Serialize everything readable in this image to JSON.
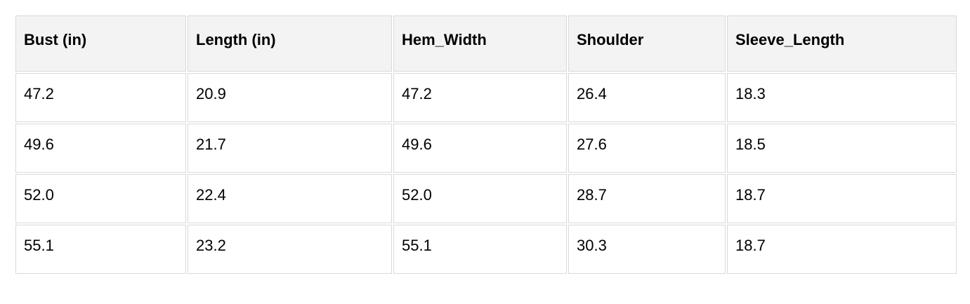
{
  "chart_data": {
    "type": "table",
    "title": "",
    "columns": [
      "Bust (in)",
      "Length (in)",
      "Hem_Width",
      "Shoulder",
      "Sleeve_Length"
    ],
    "rows": [
      [
        "47.2",
        "20.9",
        "47.2",
        "26.4",
        "18.3"
      ],
      [
        "49.6",
        "21.7",
        "49.6",
        "27.6",
        "18.5"
      ],
      [
        "52.0",
        "22.4",
        "52.0",
        "28.7",
        "18.7"
      ],
      [
        "55.1",
        "23.2",
        "55.1",
        "30.3",
        "18.7"
      ]
    ]
  },
  "colors": {
    "header_background": "#f3f3f3",
    "cell_background": "#ffffff",
    "border": "#d9d9d9",
    "text": "#000000"
  }
}
